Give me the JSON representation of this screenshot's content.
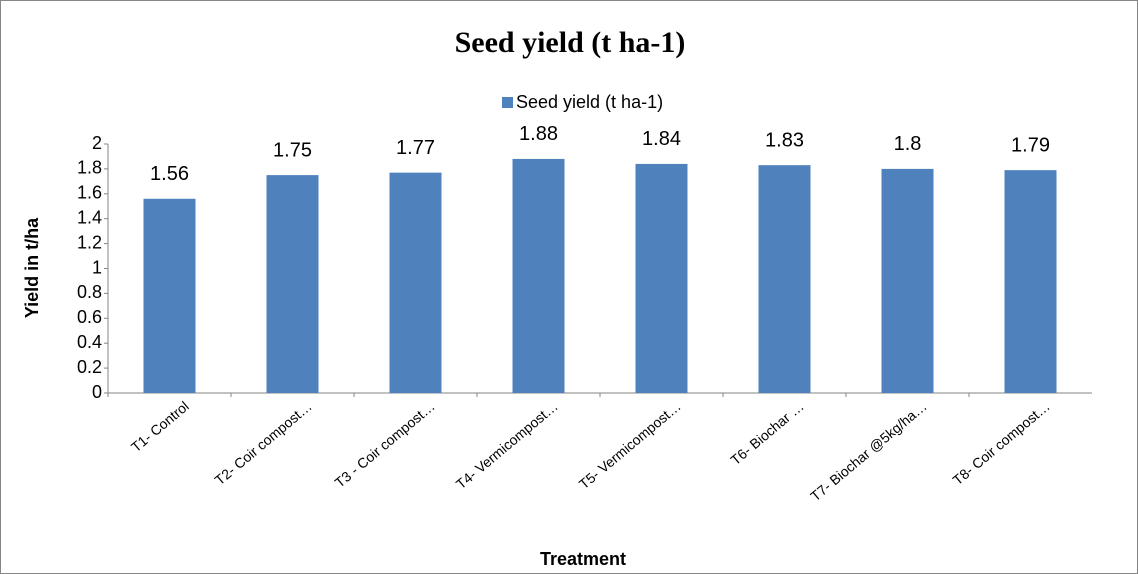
{
  "chart_data": {
    "type": "bar",
    "title": "Seed yield (t ha-1)",
    "x_label": "Treatment",
    "y_label": "Yield in t/ha",
    "categories": [
      "T1- Control",
      "T2- Coir compost…",
      "T3 - Coir compost…",
      "T4- Vermicompost…",
      "T5- Vermicompost…",
      "T6- Biochar …",
      "T7- Biochar  @5kg/ha…",
      "T8- Coir compost…"
    ],
    "series": [
      {
        "name": "Seed yield (t ha-1)",
        "color": "#4f81bd",
        "values": [
          1.56,
          1.75,
          1.77,
          1.88,
          1.84,
          1.83,
          1.8,
          1.79
        ]
      }
    ],
    "ylim": [
      0,
      2
    ],
    "yticks": [
      0,
      0.2,
      0.4,
      0.6,
      0.8,
      1,
      1.2,
      1.4,
      1.6,
      1.8,
      2
    ],
    "grid": false,
    "legend": "top"
  }
}
